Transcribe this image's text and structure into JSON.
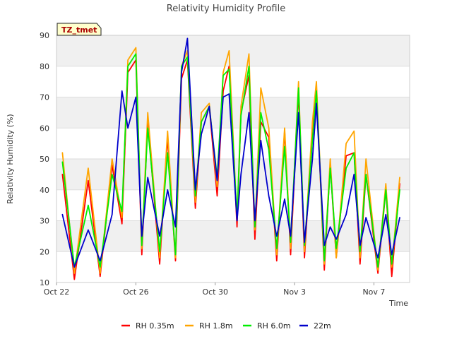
{
  "chart_data": {
    "type": "line",
    "title": "Relativity Humidity Profile",
    "xlabel": "Time",
    "ylabel": "Relativity Humidity (%)",
    "badge": "TZ_tmet",
    "ylim": [
      10,
      90
    ],
    "yticks": [
      10,
      20,
      30,
      40,
      50,
      60,
      70,
      80,
      90
    ],
    "xlim_days": [
      0,
      17.8
    ],
    "xticks": [
      {
        "day": 0,
        "label": "Oct 22"
      },
      {
        "day": 4,
        "label": "Oct 26"
      },
      {
        "day": 8,
        "label": "Oct 30"
      },
      {
        "day": 12,
        "label": "Nov 3"
      },
      {
        "day": 16,
        "label": "Nov 7"
      }
    ],
    "x_days": [
      0.3,
      0.9,
      1.6,
      2.2,
      2.8,
      3.3,
      3.6,
      4.0,
      4.3,
      4.6,
      5.2,
      5.6,
      6.0,
      6.3,
      6.6,
      7.0,
      7.3,
      7.7,
      8.1,
      8.4,
      8.7,
      9.1,
      9.3,
      9.7,
      10.0,
      10.3,
      10.7,
      11.1,
      11.5,
      11.8,
      12.2,
      12.5,
      12.9,
      13.1,
      13.5,
      13.8,
      14.1,
      14.6,
      15.0,
      15.3,
      15.6,
      16.2,
      16.6,
      16.9,
      17.3
    ],
    "series": [
      {
        "name": "RH 0.35m",
        "color": "#ff0000",
        "values": [
          45,
          11,
          43,
          12,
          48,
          29,
          78,
          82,
          19,
          62,
          16,
          57,
          17,
          76,
          82,
          34,
          62,
          67,
          38,
          72,
          80,
          28,
          65,
          77,
          24,
          62,
          57,
          17,
          59,
          19,
          72,
          18,
          60,
          73,
          14,
          48,
          18,
          51,
          52,
          16,
          45,
          13,
          40,
          12,
          42
        ]
      },
      {
        "name": "RH 1.8m",
        "color": "#ffa500",
        "values": [
          52,
          13,
          47,
          13,
          50,
          31,
          82,
          86,
          21,
          65,
          18,
          59,
          18,
          80,
          85,
          36,
          65,
          68,
          41,
          78,
          85,
          30,
          67,
          84,
          27,
          73,
          60,
          19,
          60,
          21,
          75,
          20,
          62,
          75,
          16,
          50,
          18,
          55,
          59,
          18,
          50,
          14,
          42,
          15,
          44
        ]
      },
      {
        "name": "RH 6.0m",
        "color": "#00ee00",
        "values": [
          49,
          15,
          35,
          15,
          45,
          33,
          80,
          84,
          22,
          60,
          20,
          52,
          19,
          80,
          83,
          38,
          62,
          67,
          44,
          77,
          79,
          31,
          64,
          80,
          28,
          65,
          53,
          21,
          54,
          23,
          73,
          22,
          56,
          72,
          17,
          47,
          21,
          47,
          52,
          20,
          45,
          15,
          40,
          16,
          40
        ]
      },
      {
        "name": "22m",
        "color": "#0000cc",
        "values": [
          32,
          15,
          27,
          17,
          32,
          72,
          60,
          70,
          25,
          44,
          25,
          40,
          28,
          78,
          89,
          40,
          58,
          67,
          43,
          70,
          71,
          30,
          45,
          65,
          30,
          56,
          38,
          25,
          37,
          25,
          65,
          23,
          50,
          68,
          22,
          28,
          24,
          32,
          45,
          22,
          31,
          18,
          32,
          19,
          31
        ]
      }
    ],
    "legend_position": "bottom-center"
  }
}
